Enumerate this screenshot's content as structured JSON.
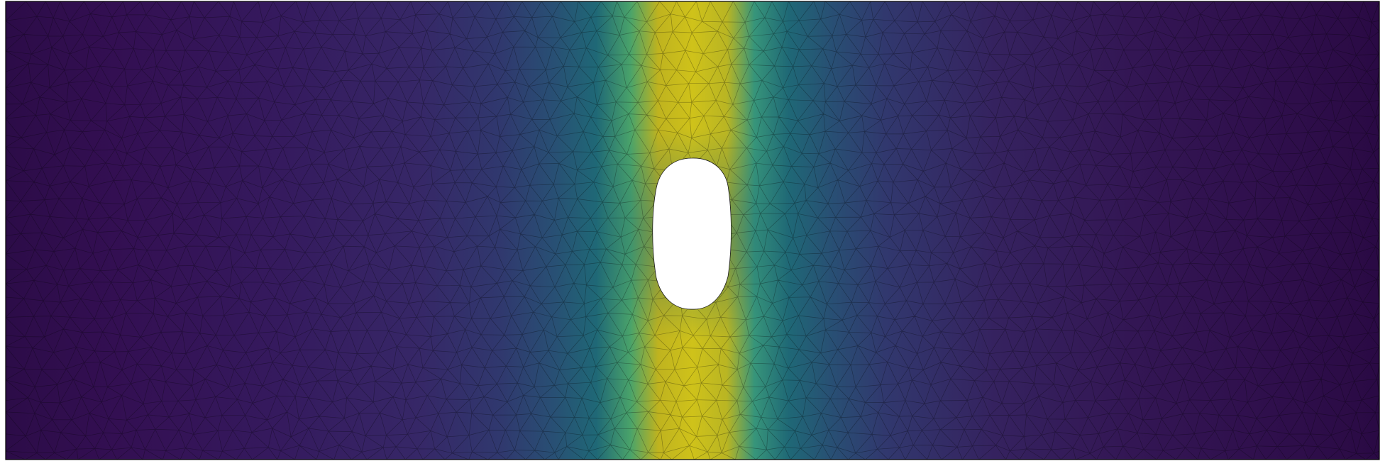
{
  "colormap": "viridis",
  "colormap_stops": [
    "#440154",
    "#3b528b",
    "#21918c",
    "#5ec962",
    "#fde725"
  ],
  "field_peak_color": "#cfc21a",
  "field_background_color": "#30124f",
  "mesh": {
    "element_type": "triangle",
    "edge_color": "#000000",
    "hole_shape": "ellipse",
    "hole_fill": "#ffffff"
  }
}
